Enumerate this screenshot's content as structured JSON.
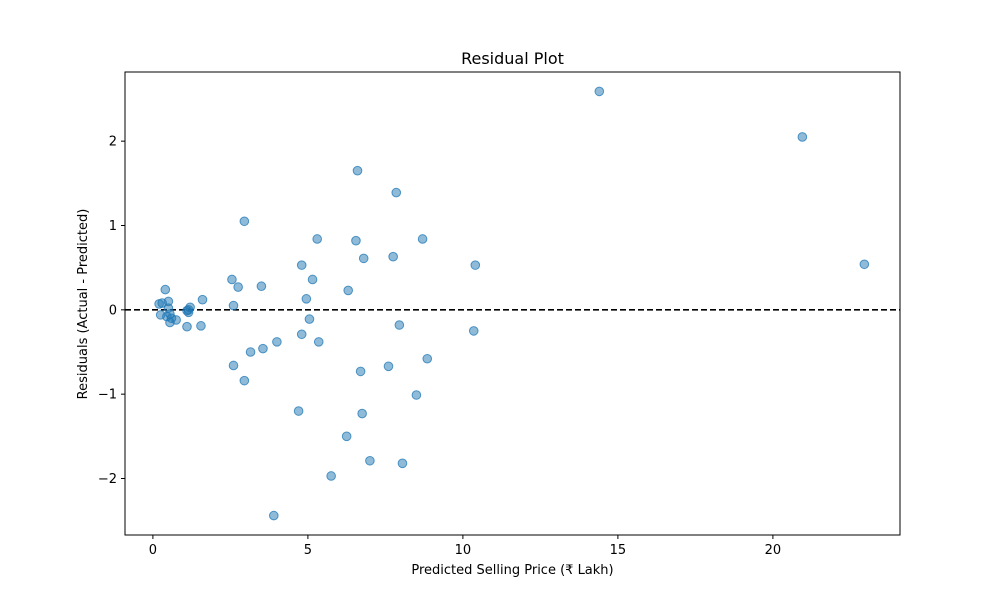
{
  "chart_data": {
    "type": "scatter",
    "title": "Residual Plot",
    "xlabel": "Predicted Selling Price (₹ Lakh)",
    "ylabel": "Residuals (Actual - Predicted)",
    "xlim": [
      -0.9,
      24.1
    ],
    "ylim": [
      -2.67,
      2.82
    ],
    "xticks": [
      0,
      5,
      10,
      15,
      20
    ],
    "yticks": [
      -2,
      -1,
      0,
      1,
      2
    ],
    "xtick_labels": [
      "0",
      "5",
      "10",
      "15",
      "20"
    ],
    "ytick_labels": [
      "−2",
      "−1",
      "0",
      "1",
      "2"
    ],
    "grid": false,
    "legend": "none",
    "reference_line": {
      "y": 0,
      "style": "dashed",
      "color": "#000000"
    },
    "marker_color": "#1f77b4",
    "marker_alpha": 0.5,
    "points": [
      {
        "x": 0.2,
        "y": 0.07
      },
      {
        "x": 0.25,
        "y": -0.06
      },
      {
        "x": 0.3,
        "y": 0.08
      },
      {
        "x": 0.4,
        "y": 0.24
      },
      {
        "x": 0.45,
        "y": -0.08
      },
      {
        "x": 0.5,
        "y": 0.1
      },
      {
        "x": 0.5,
        "y": 0.02
      },
      {
        "x": 0.55,
        "y": -0.05
      },
      {
        "x": 0.55,
        "y": -0.15
      },
      {
        "x": 0.6,
        "y": -0.1
      },
      {
        "x": 0.75,
        "y": -0.12
      },
      {
        "x": 1.1,
        "y": -0.2
      },
      {
        "x": 1.1,
        "y": -0.01
      },
      {
        "x": 1.15,
        "y": 0.0
      },
      {
        "x": 1.15,
        "y": -0.03
      },
      {
        "x": 1.2,
        "y": 0.03
      },
      {
        "x": 1.55,
        "y": -0.19
      },
      {
        "x": 1.6,
        "y": 0.12
      },
      {
        "x": 2.55,
        "y": 0.36
      },
      {
        "x": 2.6,
        "y": 0.05
      },
      {
        "x": 2.6,
        "y": -0.66
      },
      {
        "x": 2.75,
        "y": 0.27
      },
      {
        "x": 2.95,
        "y": 1.05
      },
      {
        "x": 2.95,
        "y": -0.84
      },
      {
        "x": 3.15,
        "y": -0.5
      },
      {
        "x": 3.5,
        "y": 0.28
      },
      {
        "x": 3.55,
        "y": -0.46
      },
      {
        "x": 3.9,
        "y": -2.44
      },
      {
        "x": 4.0,
        "y": -0.38
      },
      {
        "x": 4.7,
        "y": -1.2
      },
      {
        "x": 4.8,
        "y": 0.53
      },
      {
        "x": 4.8,
        "y": -0.29
      },
      {
        "x": 4.95,
        "y": 0.13
      },
      {
        "x": 5.05,
        "y": -0.11
      },
      {
        "x": 5.15,
        "y": 0.36
      },
      {
        "x": 5.3,
        "y": 0.84
      },
      {
        "x": 5.35,
        "y": -0.38
      },
      {
        "x": 5.75,
        "y": -1.97
      },
      {
        "x": 6.25,
        "y": -1.5
      },
      {
        "x": 6.3,
        "y": 0.23
      },
      {
        "x": 6.55,
        "y": 0.82
      },
      {
        "x": 6.6,
        "y": 1.65
      },
      {
        "x": 6.7,
        "y": -0.73
      },
      {
        "x": 6.75,
        "y": -1.23
      },
      {
        "x": 6.8,
        "y": 0.61
      },
      {
        "x": 7.0,
        "y": -1.79
      },
      {
        "x": 7.6,
        "y": -0.67
      },
      {
        "x": 7.75,
        "y": 0.63
      },
      {
        "x": 7.85,
        "y": 1.39
      },
      {
        "x": 7.95,
        "y": -0.18
      },
      {
        "x": 8.05,
        "y": -1.82
      },
      {
        "x": 8.5,
        "y": -1.01
      },
      {
        "x": 8.7,
        "y": 0.84
      },
      {
        "x": 8.85,
        "y": -0.58
      },
      {
        "x": 10.35,
        "y": -0.25
      },
      {
        "x": 10.4,
        "y": 0.53
      },
      {
        "x": 14.4,
        "y": 2.59
      },
      {
        "x": 20.95,
        "y": 2.05
      },
      {
        "x": 22.95,
        "y": 0.54
      }
    ]
  }
}
